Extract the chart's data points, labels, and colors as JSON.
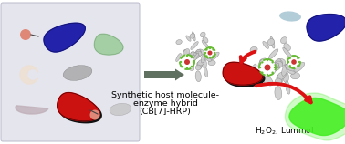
{
  "bg_color": "#ffffff",
  "left_box_color": "#e5e5ee",
  "left_box_border": "#bbbbcc",
  "arrow_color": "#607060",
  "red_arrow_color": "#dd1111",
  "title_lines": [
    "Synthetic host molecule-",
    "enzyme hybrid",
    "(CB[7]-HRP)"
  ],
  "purple_color": "#2222aa",
  "red_protein_color": "#cc1111",
  "salmon_color": "#e08878",
  "green_glow_color": "#44ee22",
  "light_green_color": "#99cc99",
  "gray_color": "#aaaaaa",
  "pink_gray_color": "#c0b0b8",
  "light_blue_color": "#99bbcc",
  "white_protein_color": "#cccccc",
  "cb7_ring_color": "#66bb33",
  "font_size_main": 6.8,
  "font_size_label": 6.5
}
